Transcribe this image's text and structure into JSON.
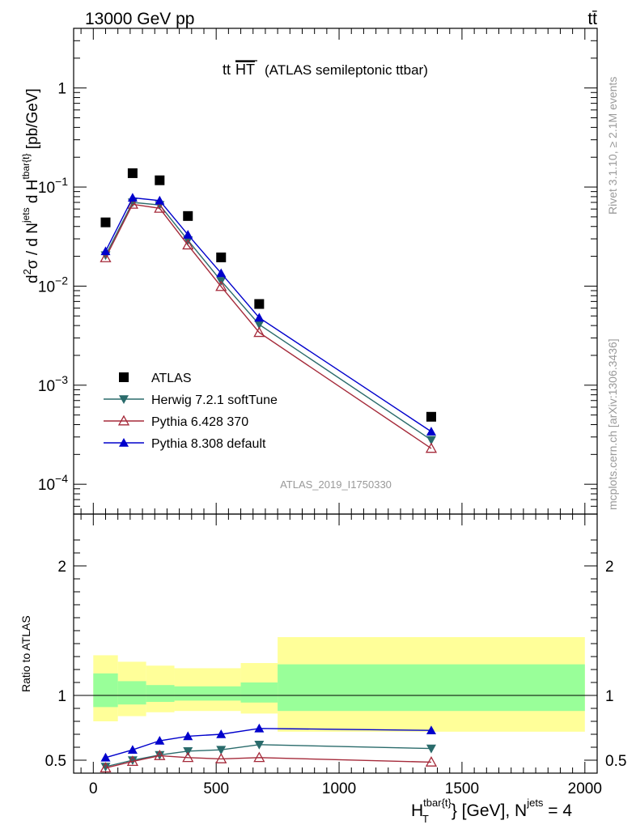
{
  "header": {
    "energy_label": "13000 GeV pp",
    "process_label": "tt̄"
  },
  "side_labels": {
    "rivet": "Rivet 3.1.10, ≥ 2.1M events",
    "mcplots": "mcplots.cern.ch [arXiv:1306.3436]"
  },
  "chart_data": [
    {
      "type": "scatter",
      "panel": "main",
      "title_main": "tt",
      "title_overline": "HT",
      "title_rest": "(ATLAS semileptonic ttbar)",
      "watermark": "ATLAS_2019_I1750330",
      "ylabel": "d²σ / d N^jets d H_T^tbar{t} [pb/GeV]",
      "yscale": "log",
      "ylim": [
        5e-05,
        4
      ],
      "xlim": [
        -80,
        2050
      ],
      "y_tick_labels": [
        "1",
        "10^-1",
        "10^-2",
        "10^-3",
        "10^-4"
      ],
      "legend_placement": "lower-left",
      "series": [
        {
          "name": "ATLAS",
          "color": "#000000",
          "marker": "square",
          "line": false,
          "x": [
            50,
            160,
            270,
            385,
            520,
            675,
            1375
          ],
          "y": [
            0.044,
            0.138,
            0.117,
            0.051,
            0.0195,
            0.0066,
            0.00048
          ]
        },
        {
          "name": "Herwig 7.2.1 softTune",
          "color": "#2a6b6b",
          "marker": "triangle-down",
          "line": true,
          "x": [
            50,
            160,
            270,
            385,
            520,
            675,
            1375
          ],
          "y": [
            0.0205,
            0.07,
            0.066,
            0.029,
            0.0113,
            0.0041,
            0.00028
          ]
        },
        {
          "name": "Pythia 6.428 370",
          "color": "#a52a3a",
          "marker": "triangle-open",
          "line": true,
          "x": [
            50,
            160,
            270,
            385,
            520,
            675,
            1375
          ],
          "y": [
            0.0193,
            0.067,
            0.061,
            0.026,
            0.0099,
            0.0034,
            0.00023
          ]
        },
        {
          "name": "Pythia 8.308 default",
          "color": "#0000cc",
          "marker": "triangle-up",
          "line": true,
          "x": [
            50,
            160,
            270,
            385,
            520,
            675,
            1375
          ],
          "y": [
            0.0225,
            0.078,
            0.073,
            0.033,
            0.0135,
            0.0048,
            0.00034
          ]
        }
      ]
    },
    {
      "type": "scatter",
      "panel": "ratio",
      "ylabel": "Ratio to ATLAS",
      "xlabel_main": "H_T^tbar{t} [GeV], N^jets = 4",
      "ylim": [
        0.4,
        2.4
      ],
      "xlim": [
        -80,
        2050
      ],
      "x_ticks": [
        0,
        500,
        1000,
        1500,
        2000
      ],
      "x_tick_labels": [
        "0",
        "500",
        "1000",
        "1500",
        "2000"
      ],
      "y_tick_labels_left": [
        "0.5",
        "1",
        "2"
      ],
      "y_tick_labels_right": [
        "0.5",
        "1",
        "2"
      ],
      "y_ticks": [
        0.5,
        1,
        2
      ],
      "bands": {
        "inner_color": "#99ff99",
        "outer_color": "#ffff99",
        "bins": [
          {
            "x0": 0,
            "x1": 100,
            "inner": [
              0.91,
              1.17
            ],
            "outer": [
              0.8,
              1.31
            ]
          },
          {
            "x0": 100,
            "x1": 215,
            "inner": [
              0.93,
              1.11
            ],
            "outer": [
              0.84,
              1.26
            ]
          },
          {
            "x0": 215,
            "x1": 330,
            "inner": [
              0.95,
              1.08
            ],
            "outer": [
              0.87,
              1.23
            ]
          },
          {
            "x0": 330,
            "x1": 600,
            "inner": [
              0.96,
              1.07
            ],
            "outer": [
              0.88,
              1.21
            ]
          },
          {
            "x0": 600,
            "x1": 750,
            "inner": [
              0.945,
              1.1
            ],
            "outer": [
              0.86,
              1.25
            ]
          },
          {
            "x0": 750,
            "x1": 2000,
            "inner": [
              0.88,
              1.24
            ],
            "outer": [
              0.72,
              1.45
            ]
          }
        ]
      },
      "series": [
        {
          "name": "Herwig 7.2.1 softTune",
          "color": "#2a6b6b",
          "marker": "triangle-down",
          "x": [
            50,
            160,
            270,
            385,
            520,
            675,
            1375
          ],
          "y": [
            0.45,
            0.5,
            0.54,
            0.57,
            0.58,
            0.62,
            0.59
          ]
        },
        {
          "name": "Pythia 6.428 370",
          "color": "#a52a3a",
          "marker": "triangle-open",
          "x": [
            50,
            160,
            270,
            385,
            520,
            675,
            1375
          ],
          "y": [
            0.44,
            0.49,
            0.535,
            0.52,
            0.51,
            0.52,
            0.485
          ]
        },
        {
          "name": "Pythia 8.308 default",
          "color": "#0000cc",
          "marker": "triangle-up",
          "x": [
            50,
            160,
            270,
            385,
            520,
            675,
            1375
          ],
          "y": [
            0.52,
            0.58,
            0.65,
            0.685,
            0.7,
            0.745,
            0.73
          ]
        }
      ]
    }
  ]
}
